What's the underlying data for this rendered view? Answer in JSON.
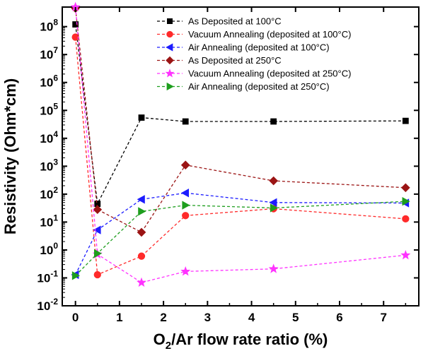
{
  "chart_data": {
    "type": "scatter",
    "title": "",
    "xlabel_parts": [
      "O",
      "2",
      "/Ar flow rate ratio (%)"
    ],
    "ylabel": "Resistivity (Ohm*cm)",
    "xlim": [
      -0.3,
      7.8
    ],
    "ylim_log10": [
      -2,
      8.7
    ],
    "y_scale": "log",
    "grid": false,
    "legend_position": "top-right",
    "x_ticks": [
      0,
      1,
      2,
      3,
      4,
      5,
      6,
      7
    ],
    "x_tick_labels": [
      "0",
      "1",
      "2",
      "3",
      "4",
      "5",
      "6",
      "7"
    ],
    "y_ticks": [
      -2,
      -1,
      0,
      1,
      2,
      3,
      4,
      5,
      6,
      7,
      8
    ],
    "y_tick_bases": [
      "10",
      "10",
      "10",
      "10",
      "10",
      "10",
      "10",
      "10",
      "10",
      "10",
      "10"
    ],
    "y_tick_exponents": [
      "-2",
      "-1",
      "0",
      "1",
      "2",
      "3",
      "4",
      "5",
      "6",
      "7",
      "8"
    ],
    "x": [
      0,
      0.5,
      1.5,
      2.5,
      4.5,
      7.5
    ],
    "series": [
      {
        "name": "As Deposited at 100°C",
        "color": "#000000",
        "marker": "square",
        "values": [
          120000000,
          45,
          55000,
          40000,
          40000,
          42000
        ]
      },
      {
        "name": "Vacuum Annealing (deposited at 100°C)",
        "color": "#ff2a2a",
        "marker": "circle",
        "values": [
          42000000,
          0.13,
          0.6,
          17,
          30,
          13
        ]
      },
      {
        "name": "Air Annealing (deposited at 100°C)",
        "color": "#1c1cff",
        "marker": "triangle-left",
        "values": [
          0.13,
          5.2,
          65,
          110,
          50,
          48
        ]
      },
      {
        "name": "As Deposited at 250°C",
        "color": "#9b1414",
        "marker": "diamond",
        "values": [
          450000000,
          28,
          4.3,
          1100,
          300,
          170
        ]
      },
      {
        "name": "Vacuum Annealing (deposited at 250°C)",
        "color": "#ff33ff",
        "marker": "star",
        "values": [
          500000000,
          0.7,
          0.068,
          0.17,
          0.21,
          0.65
        ]
      },
      {
        "name": "Air Annealing (deposited at 250°C)",
        "color": "#1e9e1e",
        "marker": "triangle-right",
        "values": [
          0.12,
          0.75,
          24,
          40,
          32,
          55
        ]
      }
    ]
  }
}
